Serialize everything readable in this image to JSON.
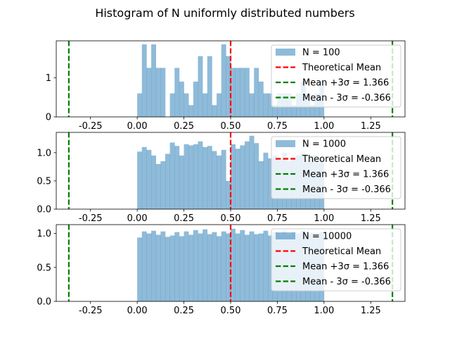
{
  "title": "Histogram of N uniformly distributed numbers",
  "colors": {
    "histogram": "#1f77b4",
    "theoretical_mean": "#ff0000",
    "sigma_lines": "#008000"
  },
  "chart_data": [
    {
      "type": "bar",
      "bin_edges_start": 0.0,
      "bin_width": 0.025,
      "values": [
        0.6,
        1.85,
        1.25,
        1.85,
        1.25,
        1.25,
        0.0,
        0.6,
        1.25,
        0.9,
        0.6,
        0.3,
        0.9,
        1.55,
        0.6,
        1.55,
        0.3,
        0.6,
        1.85,
        1.55,
        1.25,
        1.25,
        1.25,
        1.25,
        0.6,
        1.25,
        0.9,
        0.6,
        0.6,
        0.3,
        0.6,
        0.6,
        0.6,
        0.3,
        0.6,
        0.9,
        0.6,
        0.3,
        0.6,
        0.9
      ],
      "xlim": [
        -0.4333,
        1.4333
      ],
      "ylim": [
        0,
        1.94
      ],
      "x_ticks": [
        "-0.25",
        "0.00",
        "0.25",
        "0.50",
        "0.75",
        "1.00",
        "1.25"
      ],
      "x_tick_values": [
        -0.25,
        0.0,
        0.25,
        0.5,
        0.75,
        1.0,
        1.25
      ],
      "y_ticks": [
        "0",
        "1"
      ],
      "y_tick_values": [
        0,
        1
      ],
      "vlines": [
        {
          "x": 0.5,
          "color": "#ff0000"
        },
        {
          "x": 1.366,
          "color": "#008000"
        },
        {
          "x": -0.366,
          "color": "#008000"
        }
      ],
      "legend": [
        "N = 100",
        "Theoretical Mean",
        "Mean +3σ = 1.366",
        "Mean - 3σ = -0.366"
      ]
    },
    {
      "type": "bar",
      "bin_edges_start": 0.0,
      "bin_width": 0.025,
      "values": [
        1.02,
        1.1,
        1.05,
        0.95,
        0.8,
        0.85,
        0.98,
        1.18,
        1.12,
        0.95,
        1.15,
        1.13,
        1.15,
        1.2,
        1.1,
        1.12,
        1.03,
        0.95,
        1.05,
        0.5,
        1.15,
        1.07,
        1.13,
        1.2,
        1.3,
        1.17,
        0.85,
        1.0,
        0.9,
        0.95,
        0.87,
        1.0,
        0.85,
        0.92,
        0.95,
        1.0,
        0.88,
        0.95,
        0.82,
        0.9
      ],
      "xlim": [
        -0.4333,
        1.4333
      ],
      "ylim": [
        0,
        1.36
      ],
      "x_ticks": [
        "-0.25",
        "0.00",
        "0.25",
        "0.50",
        "0.75",
        "1.00",
        "1.25"
      ],
      "x_tick_values": [
        -0.25,
        0.0,
        0.25,
        0.5,
        0.75,
        1.0,
        1.25
      ],
      "y_ticks": [
        "0.0",
        "0.5",
        "1.0"
      ],
      "y_tick_values": [
        0,
        0.5,
        1.0
      ],
      "vlines": [
        {
          "x": 0.5,
          "color": "#ff0000"
        },
        {
          "x": 1.366,
          "color": "#008000"
        },
        {
          "x": -0.366,
          "color": "#008000"
        }
      ],
      "legend": [
        "N = 1000",
        "Theoretical Mean",
        "Mean +3σ = 1.366",
        "Mean - 3σ = -0.366"
      ]
    },
    {
      "type": "bar",
      "bin_edges_start": 0.0,
      "bin_width": 0.025,
      "values": [
        0.94,
        1.03,
        1.0,
        1.04,
        0.98,
        1.03,
        0.95,
        0.97,
        1.02,
        0.96,
        1.03,
        0.98,
        1.05,
        1.0,
        1.06,
        0.99,
        1.02,
        0.96,
        1.03,
        1.0,
        1.07,
        1.0,
        1.05,
        0.98,
        1.03,
        0.99,
        1.0,
        1.04,
        0.97,
        1.02,
        1.0,
        1.04,
        0.98,
        1.02,
        1.0,
        1.04,
        0.99,
        1.01,
        1.0,
        1.02
      ],
      "xlim": [
        -0.4333,
        1.4333
      ],
      "ylim": [
        0,
        1.13
      ],
      "x_ticks": [
        "-0.25",
        "0.00",
        "0.25",
        "0.50",
        "0.75",
        "1.00",
        "1.25"
      ],
      "x_tick_values": [
        -0.25,
        0.0,
        0.25,
        0.5,
        0.75,
        1.0,
        1.25
      ],
      "y_ticks": [
        "0.0",
        "0.5",
        "1.0"
      ],
      "y_tick_values": [
        0,
        0.5,
        1.0
      ],
      "vlines": [
        {
          "x": 0.5,
          "color": "#ff0000"
        },
        {
          "x": 1.366,
          "color": "#008000"
        },
        {
          "x": -0.366,
          "color": "#008000"
        }
      ],
      "legend": [
        "N = 10000",
        "Theoretical Mean",
        "Mean +3σ = 1.366",
        "Mean - 3σ = -0.366"
      ]
    }
  ]
}
